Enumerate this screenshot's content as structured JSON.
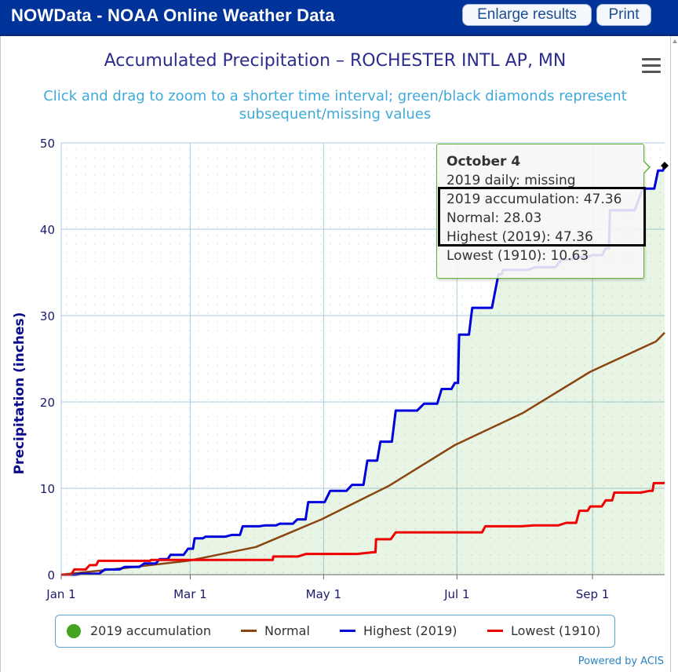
{
  "header": {
    "title": "NOWData - NOAA Online Weather Data",
    "enlarge_label": "Enlarge results",
    "print_label": "Print"
  },
  "chart": {
    "title": "Accumulated Precipitation – ROCHESTER INTL AP, MN",
    "subtitle_line1": "Click and drag to zoom to a shorter time interval; green/black diamonds represent",
    "subtitle_line2": "subsequent/missing values",
    "credit": "Powered by ACIS"
  },
  "tooltip": {
    "date": "October 4",
    "daily": "2019 daily: missing",
    "accumulation": "2019 accumulation: 47.36",
    "normal": "Normal: 28.03",
    "highest": "Highest (2019): 47.36",
    "lowest": "Lowest (1910): 10.63"
  },
  "legend": [
    {
      "label": "2019 accumulation",
      "color": "#44a420",
      "symbol": "dot"
    },
    {
      "label": "Normal",
      "color": "#8b4513",
      "symbol": "line"
    },
    {
      "label": "Highest (2019)",
      "color": "#0000dd",
      "symbol": "line"
    },
    {
      "label": "Lowest (1910)",
      "color": "#ee0000",
      "symbol": "line"
    }
  ],
  "chart_data": {
    "type": "line",
    "ylabel": "Precipitation (inches)",
    "ylim": [
      0,
      50
    ],
    "yticks": [
      "0",
      "10",
      "20",
      "30",
      "40",
      "50"
    ],
    "xlim": [
      "Jan 1",
      "Oct 4"
    ],
    "xticks": [
      "Jan 1",
      "Mar 1",
      "May 1",
      "Jul 1",
      "Sep 1"
    ],
    "grid": true,
    "legend_position": "bottom",
    "series": [
      {
        "name": "2019 accumulation",
        "color": "#44a420",
        "style": "area",
        "points": [
          [
            "Jan 1",
            0
          ],
          [
            "Jan 10",
            0.1
          ],
          [
            "Jan 21",
            0.6
          ],
          [
            "Jan 30",
            0.9
          ],
          [
            "Feb 8",
            1.3
          ],
          [
            "Feb 15",
            1.8
          ],
          [
            "Feb 20",
            2.3
          ],
          [
            "Feb 28",
            3.0
          ],
          [
            "Mar 3",
            4.2
          ],
          [
            "Mar 8",
            4.4
          ],
          [
            "Mar 20",
            4.6
          ],
          [
            "Mar 25",
            5.6
          ],
          [
            "Apr 4",
            5.7
          ],
          [
            "Apr 11",
            5.9
          ],
          [
            "Apr 19",
            6.4
          ],
          [
            "Apr 24",
            8.4
          ],
          [
            "May 4",
            9.7
          ],
          [
            "May 14",
            10.4
          ],
          [
            "May 21",
            13.2
          ],
          [
            "May 27",
            15.4
          ],
          [
            "Jun 3",
            19.0
          ],
          [
            "Jun 16",
            19.8
          ],
          [
            "Jun 24",
            21.5
          ],
          [
            "Jun 30",
            22.2
          ],
          [
            "Jul 2",
            27.8
          ],
          [
            "Jul 8",
            30.9
          ],
          [
            "Jul 20",
            34.8
          ],
          [
            "Jul 22",
            35.3
          ],
          [
            "Aug 6",
            35.6
          ],
          [
            "Aug 18",
            36.5
          ],
          [
            "Aug 24",
            36.8
          ],
          [
            "Sep 1",
            37.0
          ],
          [
            "Sep 7",
            37.8
          ],
          [
            "Sep 9",
            42.2
          ],
          [
            "Sep 24",
            44.7
          ],
          [
            "Oct 1",
            46.8
          ],
          [
            "Oct 4",
            47.36
          ]
        ]
      },
      {
        "name": "Normal",
        "color": "#8b4513",
        "style": "line",
        "points": [
          [
            "Jan 1",
            0
          ],
          [
            "Jan 31",
            0.8
          ],
          [
            "Feb 28",
            1.6
          ],
          [
            "Mar 31",
            3.2
          ],
          [
            "Apr 30",
            6.4
          ],
          [
            "May 31",
            10.3
          ],
          [
            "Jun 30",
            15.0
          ],
          [
            "Jul 31",
            18.7
          ],
          [
            "Aug 31",
            23.5
          ],
          [
            "Sep 30",
            27.0
          ],
          [
            "Oct 4",
            28.03
          ]
        ]
      },
      {
        "name": "Highest (2019)",
        "color": "#0000dd",
        "style": "line",
        "points": [
          [
            "Jan 1",
            0
          ],
          [
            "Jan 10",
            0.1
          ],
          [
            "Jan 21",
            0.6
          ],
          [
            "Jan 30",
            0.9
          ],
          [
            "Feb 8",
            1.3
          ],
          [
            "Feb 15",
            1.8
          ],
          [
            "Feb 20",
            2.3
          ],
          [
            "Feb 28",
            3.0
          ],
          [
            "Mar 3",
            4.2
          ],
          [
            "Mar 8",
            4.4
          ],
          [
            "Mar 20",
            4.6
          ],
          [
            "Mar 25",
            5.6
          ],
          [
            "Apr 4",
            5.7
          ],
          [
            "Apr 11",
            5.9
          ],
          [
            "Apr 19",
            6.4
          ],
          [
            "Apr 24",
            8.4
          ],
          [
            "May 4",
            9.7
          ],
          [
            "May 14",
            10.4
          ],
          [
            "May 21",
            13.2
          ],
          [
            "May 27",
            15.4
          ],
          [
            "Jun 3",
            19.0
          ],
          [
            "Jun 16",
            19.8
          ],
          [
            "Jun 24",
            21.5
          ],
          [
            "Jun 30",
            22.2
          ],
          [
            "Jul 2",
            27.8
          ],
          [
            "Jul 8",
            30.9
          ],
          [
            "Jul 20",
            34.8
          ],
          [
            "Jul 22",
            35.3
          ],
          [
            "Aug 6",
            35.6
          ],
          [
            "Aug 18",
            36.5
          ],
          [
            "Aug 24",
            36.8
          ],
          [
            "Sep 1",
            37.0
          ],
          [
            "Sep 7",
            37.8
          ],
          [
            "Sep 9",
            42.2
          ],
          [
            "Sep 24",
            44.7
          ],
          [
            "Oct 1",
            46.8
          ],
          [
            "Oct 4",
            47.36
          ]
        ]
      },
      {
        "name": "Lowest (1910)",
        "color": "#ee0000",
        "style": "line",
        "points": [
          [
            "Jan 1",
            0
          ],
          [
            "Jan 7",
            0.6
          ],
          [
            "Jan 14",
            1.1
          ],
          [
            "Jan 18",
            1.6
          ],
          [
            "Feb 10",
            1.6
          ],
          [
            "Feb 11",
            1.7
          ],
          [
            "Mar 1",
            1.7
          ],
          [
            "Apr 7",
            1.7
          ],
          [
            "Apr 8",
            2.1
          ],
          [
            "Apr 23",
            2.4
          ],
          [
            "May 24",
            2.6
          ],
          [
            "May 25",
            4.1
          ],
          [
            "Jun 3",
            4.9
          ],
          [
            "Jul 8",
            4.9
          ],
          [
            "Jul 14",
            5.6
          ],
          [
            "Aug 5",
            5.7
          ],
          [
            "Aug 20",
            6.0
          ],
          [
            "Aug 26",
            7.4
          ],
          [
            "Aug 31",
            7.9
          ],
          [
            "Sep 7",
            8.6
          ],
          [
            "Sep 11",
            9.5
          ],
          [
            "Sep 27",
            9.7
          ],
          [
            "Sep 29",
            10.6
          ],
          [
            "Oct 4",
            10.63
          ]
        ]
      }
    ],
    "marker": {
      "date": "Oct 4",
      "value": 47.36,
      "shape": "diamond",
      "color": "#000000"
    }
  }
}
